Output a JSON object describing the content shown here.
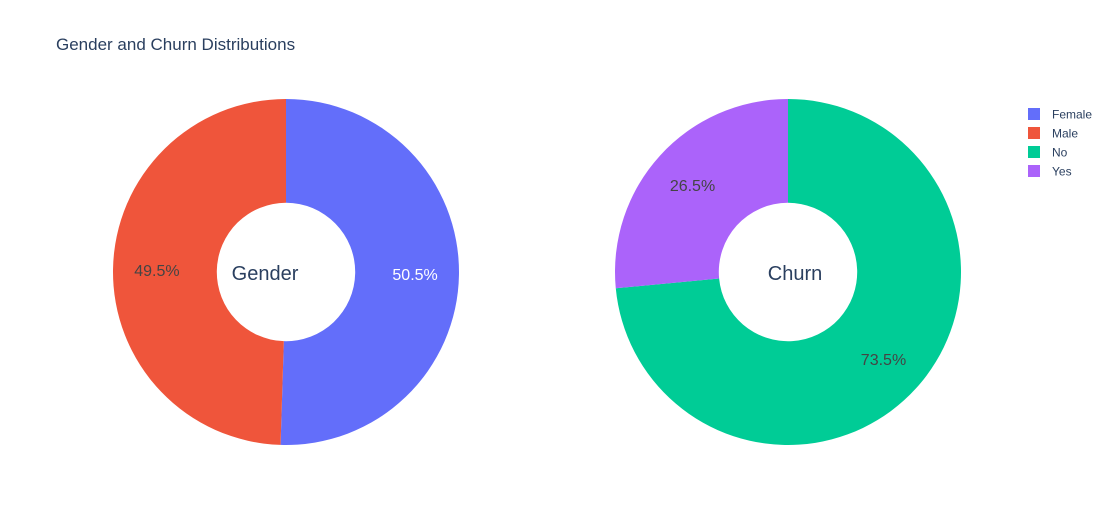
{
  "chart_data": {
    "type": "pie",
    "title": "Gender and Churn Distributions",
    "hole": 0.4,
    "charts": [
      {
        "center_label": "Gender",
        "slices": [
          {
            "label": "Female",
            "value": 50.5,
            "text": "50.5%",
            "color": "#636efa",
            "text_color": "#ffffff"
          },
          {
            "label": "Male",
            "value": 49.5,
            "text": "49.5%",
            "color": "#ef553b",
            "text_color": "#444444"
          }
        ]
      },
      {
        "center_label": "Churn",
        "slices": [
          {
            "label": "No",
            "value": 73.5,
            "text": "73.5%",
            "color": "#00cc96",
            "text_color": "#444444"
          },
          {
            "label": "Yes",
            "value": 26.5,
            "text": "26.5%",
            "color": "#ab63fa",
            "text_color": "#444444"
          }
        ]
      }
    ],
    "legend": {
      "position": "top-right",
      "items": [
        {
          "label": "Female",
          "color": "#636efa"
        },
        {
          "label": "Male",
          "color": "#ef553b"
        },
        {
          "label": "No",
          "color": "#00cc96"
        },
        {
          "label": "Yes",
          "color": "#ab63fa"
        }
      ]
    }
  }
}
